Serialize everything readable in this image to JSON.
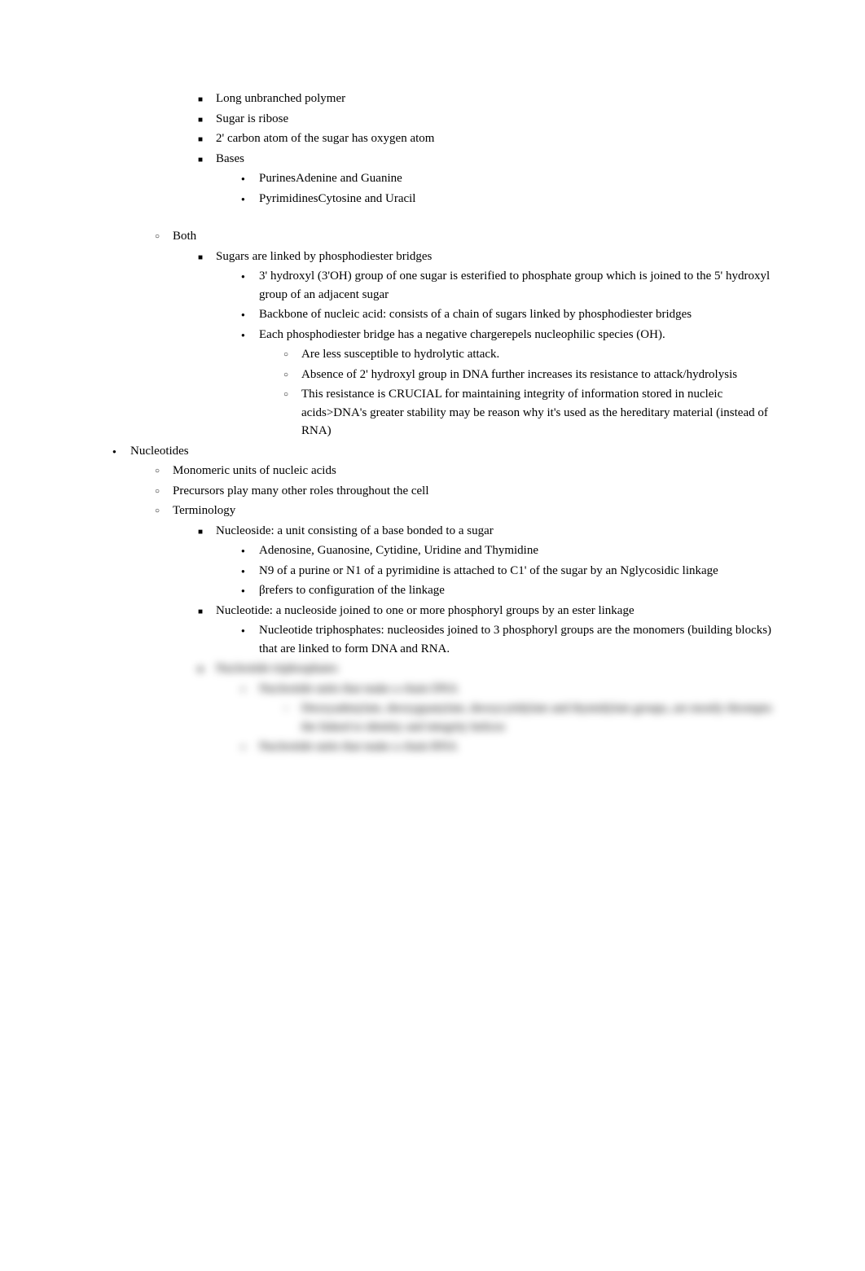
{
  "rna": {
    "items": [
      "Long unbranched polymer",
      "Sugar is ribose",
      "2' carbon atom of the sugar has oxygen atom",
      "Bases"
    ],
    "bases": [
      "PurinesAdenine and Guanine",
      "PyrimidinesCytosine and Uracil"
    ]
  },
  "both": {
    "header": "Both",
    "sugars_header": "Sugars are linked by phosphodiester bridges",
    "sugars_items": [
      "3' hydroxyl (3'OH) group of one sugar is esterified to phosphate group which is joined to the 5' hydroxyl group of an adjacent sugar",
      "Backbone of nucleic acid: consists of a chain of sugars linked by phosphodiester bridges",
      "Each phosphodiester bridge has a negative chargerepels nucleophilic species (OH)."
    ],
    "subitems": [
      "Are less susceptible to hydrolytic attack.",
      "Absence of 2' hydroxyl group in DNA further increases its resistance to attack/hydrolysis",
      "This resistance is CRUCIAL for maintaining integrity of information stored in nucleic acids>DNA's greater stability may be reason why it's used as the hereditary material (instead of RNA)"
    ]
  },
  "nucleotides": {
    "header": "Nucleotides",
    "items": [
      "Monomeric units of nucleic acids",
      "Precursors play many other roles throughout the cell",
      "Terminology"
    ],
    "nucleoside_header": "Nucleoside: a unit consisting of a base bonded to a sugar",
    "nucleoside_items": [
      "Adenosine, Guanosine, Cytidine, Uridine and Thymidine",
      "N9 of a purine or N1 of a pyrimidine is attached to C1' of the sugar by an Nglycosidic linkage",
      "βrefers to configuration of the linkage"
    ],
    "nucleotide_header": "Nucleotide: a nucleoside joined to one or more phosphoryl groups by an ester linkage",
    "nucleotide_items": [
      "Nucleotide triphosphates: nucleosides joined to 3 phosphoryl groups are the monomers (building blocks) that are linked to form DNA and RNA."
    ]
  },
  "blurred": {
    "header": "Nucleotide triphosphates",
    "item1": "Nucleotide units that make a chain DNA",
    "subitem1": "Deoxyadenylate, deoxyguanylate, deoxycytidylate and thymidylate groups, are mostly thrompto the linked to identity and integrity helices",
    "item2": "Nucleotide units that make a chain RNA"
  }
}
